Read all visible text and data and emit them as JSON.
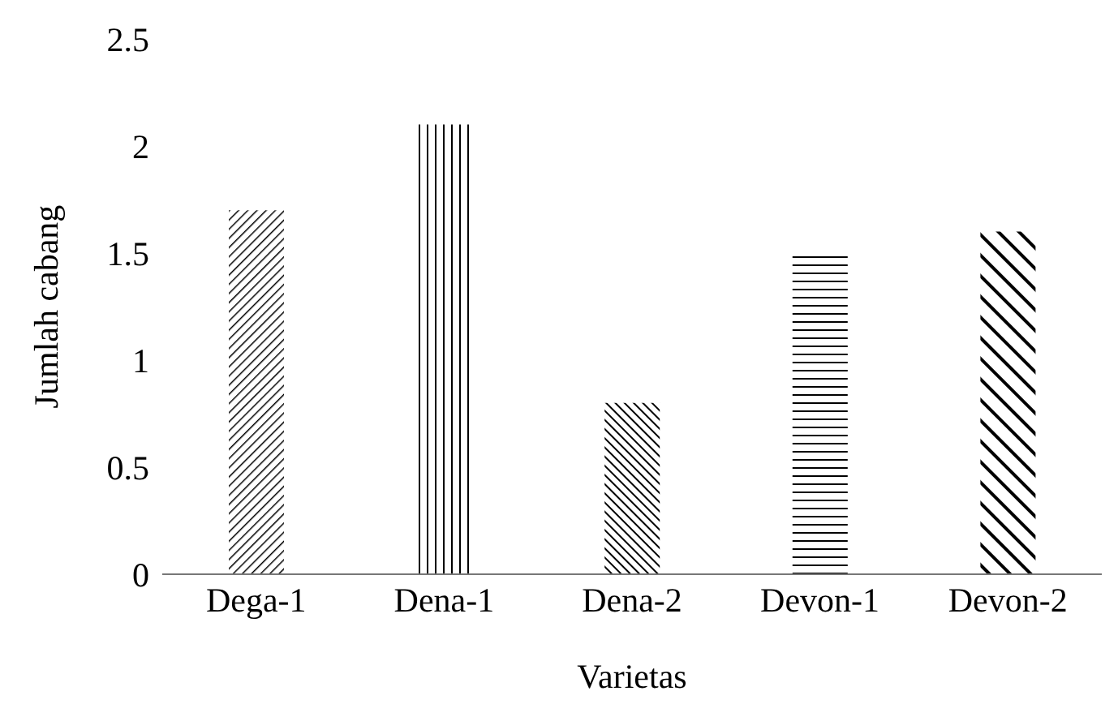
{
  "chart_data": {
    "type": "bar",
    "xlabel": "Varietas",
    "ylabel": "Jumlah cabang",
    "categories": [
      "Dega-1",
      "Dena-1",
      "Dena-2",
      "Devon-1",
      "Devon-2"
    ],
    "values": [
      1.7,
      2.1,
      0.8,
      1.5,
      1.6
    ],
    "color": "#000000",
    "ylim": [
      0,
      2.5
    ],
    "yticks": [
      0,
      0.5,
      1,
      1.5,
      2,
      2.5
    ],
    "grid": false,
    "legend": false
  }
}
